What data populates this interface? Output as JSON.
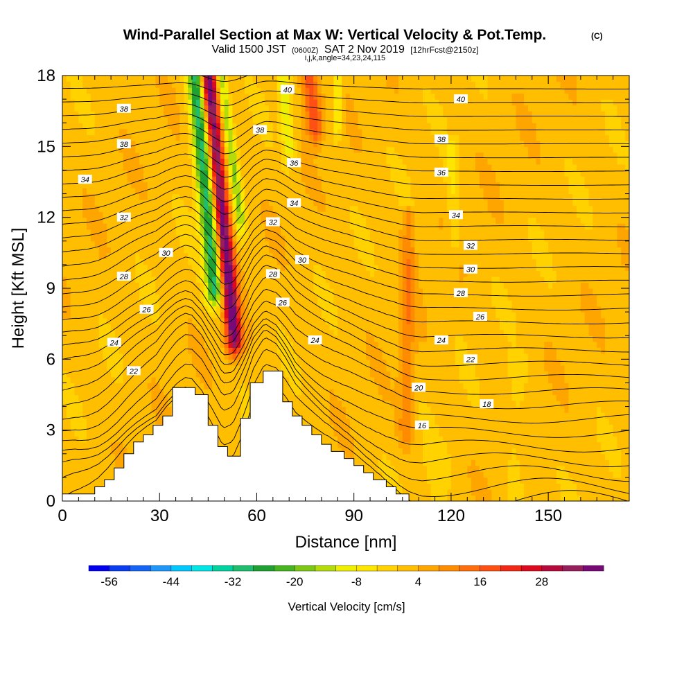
{
  "chart_data": {
    "type": "heatmap",
    "title": "Wind-Parallel Section at Max W: Vertical Velocity & Pot.Temp.",
    "title_mark": "(C)",
    "subtitle_parts": [
      "Valid 1500 JST",
      "(0600Z)",
      "SAT 2 Nov 2019",
      "[12hrFcst@2150z]"
    ],
    "subtitle2": "i,j,k,angle=34,23,24,115",
    "xlabel": "Distance [nm]",
    "ylabel": "Height [Kft MSL]",
    "xlim": [
      0,
      175
    ],
    "ylim": [
      0,
      18
    ],
    "x_ticks": [
      0,
      30,
      60,
      90,
      120,
      150
    ],
    "y_ticks": [
      0,
      3,
      6,
      9,
      12,
      15,
      18
    ],
    "colorbar": {
      "label": "Vertical Velocity [cm/s]",
      "min": -60,
      "max": 36,
      "step": 4,
      "tick_values": [
        -56,
        -44,
        -32,
        -20,
        -8,
        4,
        16,
        28
      ],
      "colors": [
        "#0000ee",
        "#0a3cf0",
        "#1464f5",
        "#1e96fa",
        "#00c8ff",
        "#00e6e6",
        "#00d2a0",
        "#1ebe6e",
        "#1ea032",
        "#46b41e",
        "#7dc814",
        "#b4dc0a",
        "#eef000",
        "#ffe600",
        "#ffd200",
        "#ffbe00",
        "#ffa500",
        "#ff8c00",
        "#ff6e0a",
        "#ff5014",
        "#f02814",
        "#dc0a1e",
        "#b40a3c",
        "#961e5a",
        "#780a78"
      ]
    },
    "terrain_profile": [
      [
        0,
        0.3
      ],
      [
        10,
        0.3
      ],
      [
        10,
        0.6
      ],
      [
        13,
        0.6
      ],
      [
        13,
        0.9
      ],
      [
        16,
        0.9
      ],
      [
        16,
        1.4
      ],
      [
        19,
        1.4
      ],
      [
        19,
        2.0
      ],
      [
        22,
        2.0
      ],
      [
        22,
        2.5
      ],
      [
        25,
        2.5
      ],
      [
        25,
        2.8
      ],
      [
        28,
        2.8
      ],
      [
        28,
        3.2
      ],
      [
        31,
        3.2
      ],
      [
        31,
        3.6
      ],
      [
        34,
        3.6
      ],
      [
        34,
        4.8
      ],
      [
        41,
        4.8
      ],
      [
        41,
        4.5
      ],
      [
        45,
        4.5
      ],
      [
        45,
        3.2
      ],
      [
        48,
        3.2
      ],
      [
        48,
        2.3
      ],
      [
        51,
        2.3
      ],
      [
        51,
        1.9
      ],
      [
        55,
        1.9
      ],
      [
        55,
        3.5
      ],
      [
        58,
        3.5
      ],
      [
        58,
        5.0
      ],
      [
        62,
        5.0
      ],
      [
        62,
        5.5
      ],
      [
        68,
        5.5
      ],
      [
        68,
        4.2
      ],
      [
        71,
        4.2
      ],
      [
        71,
        3.6
      ],
      [
        74,
        3.6
      ],
      [
        74,
        3.2
      ],
      [
        77,
        3.2
      ],
      [
        77,
        2.8
      ],
      [
        80,
        2.8
      ],
      [
        80,
        2.4
      ],
      [
        83,
        2.4
      ],
      [
        83,
        2.1
      ],
      [
        87,
        2.1
      ],
      [
        87,
        1.8
      ],
      [
        90,
        1.8
      ],
      [
        90,
        1.5
      ],
      [
        93,
        1.5
      ],
      [
        93,
        1.2
      ],
      [
        96,
        1.2
      ],
      [
        96,
        0.9
      ],
      [
        100,
        0.9
      ],
      [
        100,
        0.6
      ],
      [
        103,
        0.6
      ],
      [
        103,
        0.3
      ],
      [
        107,
        0.3
      ],
      [
        107,
        0
      ],
      [
        175,
        0
      ]
    ],
    "velocity_features": [
      {
        "x0": 45,
        "x1": 53,
        "ya": 18,
        "yb": 7,
        "w": 2.4,
        "amp": 38
      },
      {
        "x0": 41,
        "x1": 47,
        "ya": 18,
        "yb": 9,
        "w": 2.6,
        "amp": -32
      },
      {
        "x0": 49,
        "x1": 55,
        "ya": 18,
        "yb": 12,
        "w": 1.6,
        "amp": -18
      },
      {
        "x0": 68,
        "x1": 70,
        "ya": 18,
        "yb": 15,
        "w": 1.8,
        "amp": -14
      },
      {
        "x0": 85,
        "x1": 85,
        "ya": 18,
        "yb": 16,
        "w": 1.5,
        "amp": -10
      },
      {
        "x0": 76,
        "x1": 78,
        "ya": 18,
        "yb": 16,
        "w": 2.6,
        "amp": 18
      },
      {
        "x0": 120,
        "x1": 121,
        "ya": 15,
        "yb": 11,
        "w": 2.0,
        "amp": -6
      },
      {
        "x0": 107,
        "x1": 106,
        "ya": 12,
        "yb": 3,
        "w": 2.2,
        "amp": 9
      },
      {
        "x0": 140,
        "x1": 140,
        "ya": 6,
        "yb": 0,
        "w": 3.0,
        "amp": -4
      },
      {
        "x0": 115,
        "x1": 115,
        "ya": 2,
        "yb": 0,
        "w": 4.0,
        "amp": -3
      }
    ],
    "theta_min": 10,
    "theta_max": 42,
    "theta_labels": [
      {
        "v": "40",
        "x": 69.5,
        "y": 17.4
      },
      {
        "v": "40",
        "x": 123,
        "y": 17.0
      },
      {
        "v": "38",
        "x": 19,
        "y": 16.6
      },
      {
        "v": "38",
        "x": 61,
        "y": 15.7
      },
      {
        "v": "38",
        "x": 117,
        "y": 15.3
      },
      {
        "v": "38",
        "x": 19,
        "y": 15.1
      },
      {
        "v": "36",
        "x": 71.5,
        "y": 14.3
      },
      {
        "v": "36",
        "x": 117,
        "y": 13.9
      },
      {
        "v": "34",
        "x": 7,
        "y": 13.6
      },
      {
        "v": "34",
        "x": 71.5,
        "y": 12.6
      },
      {
        "v": "34",
        "x": 121.5,
        "y": 12.1
      },
      {
        "v": "32",
        "x": 19,
        "y": 12.0
      },
      {
        "v": "32",
        "x": 65,
        "y": 11.8
      },
      {
        "v": "32",
        "x": 126,
        "y": 10.8
      },
      {
        "v": "30",
        "x": 32,
        "y": 10.5
      },
      {
        "v": "30",
        "x": 74,
        "y": 10.2
      },
      {
        "v": "30",
        "x": 126,
        "y": 9.8
      },
      {
        "v": "28",
        "x": 19,
        "y": 9.5
      },
      {
        "v": "28",
        "x": 65,
        "y": 9.6
      },
      {
        "v": "28",
        "x": 123,
        "y": 8.8
      },
      {
        "v": "26",
        "x": 26,
        "y": 8.1
      },
      {
        "v": "26",
        "x": 68,
        "y": 8.4
      },
      {
        "v": "26",
        "x": 129,
        "y": 7.8
      },
      {
        "v": "24",
        "x": 16,
        "y": 6.7
      },
      {
        "v": "24",
        "x": 78,
        "y": 6.8
      },
      {
        "v": "24",
        "x": 117,
        "y": 6.8
      },
      {
        "v": "22",
        "x": 22,
        "y": 5.5
      },
      {
        "v": "22",
        "x": 126,
        "y": 6.0
      },
      {
        "v": "20",
        "x": 110,
        "y": 4.8
      },
      {
        "v": "18",
        "x": 131,
        "y": 4.1
      },
      {
        "v": "16",
        "x": 111,
        "y": 3.2
      }
    ]
  }
}
